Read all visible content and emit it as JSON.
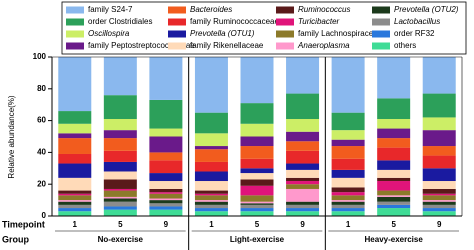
{
  "chart_data": {
    "type": "stacked_bar",
    "ylabel": "Relative abundance(%)",
    "row_labels": [
      "Timepoint",
      "Group"
    ],
    "categories": [
      "1",
      "5",
      "9",
      "1",
      "5",
      "9",
      "1",
      "5",
      "9"
    ],
    "groups": [
      "No-exercise",
      "Light-exercise",
      "Heavy-exercise"
    ],
    "ylim": [
      0,
      100
    ],
    "yticks": [
      0,
      20,
      40,
      60,
      80,
      100
    ],
    "series": [
      {
        "name": "others",
        "color": "#3fdc96",
        "values": [
          3,
          4,
          4,
          3,
          3,
          3,
          3,
          5,
          3
        ]
      },
      {
        "name": "order RF32",
        "color": "#2a78dc",
        "values": [
          2,
          2,
          2,
          2,
          2,
          2,
          2,
          2,
          2
        ]
      },
      {
        "name": "Lactobacillus",
        "color": "#8c8c8c",
        "italic": true,
        "values": [
          2,
          3,
          2,
          2,
          2,
          2,
          2,
          2,
          2
        ]
      },
      {
        "name": "Prevotella (OTU2)",
        "color": "#1c3a1c",
        "italic": true,
        "values": [
          2,
          2,
          2,
          2,
          1,
          2,
          2,
          3,
          2
        ]
      },
      {
        "name": "Anaeroplasma",
        "color": "#ff99cc",
        "italic": true,
        "values": [
          1,
          1,
          1,
          1,
          1,
          8,
          1,
          1,
          1
        ]
      },
      {
        "name": "family Lachnospiraceae",
        "color": "#8c7a2a",
        "values": [
          3,
          4,
          3,
          3,
          4,
          3,
          3,
          3,
          3
        ]
      },
      {
        "name": "Turicibacter",
        "color": "#e0147a",
        "italic": true,
        "values": [
          1,
          1,
          1,
          1,
          6,
          2,
          2,
          6,
          1
        ]
      },
      {
        "name": "Ruminococcus",
        "color": "#5a1a1a",
        "italic": true,
        "values": [
          2,
          6,
          2,
          2,
          4,
          2,
          3,
          2,
          3
        ]
      },
      {
        "name": "family Rikenellaceae",
        "color": "#ffdab8",
        "values": [
          8,
          5,
          5,
          6,
          4,
          5,
          6,
          5,
          5
        ]
      },
      {
        "name": "Prevotella (OTU1)",
        "color": "#1a1aa0",
        "italic": true,
        "values": [
          9,
          6,
          5,
          6,
          3,
          4,
          5,
          6,
          8
        ]
      },
      {
        "name": "family Ruminococcaceae",
        "color": "#e8282a",
        "values": [
          6,
          7,
          8,
          6,
          6,
          8,
          7,
          8,
          8
        ]
      },
      {
        "name": "Bacteroides",
        "color": "#f25c1e",
        "italic": true,
        "values": [
          10,
          8,
          5,
          8,
          8,
          6,
          8,
          6,
          6
        ]
      },
      {
        "name": "family Peptostreptococcaceae",
        "color": "#6a1a8a",
        "values": [
          3,
          5,
          10,
          2,
          6,
          6,
          4,
          6,
          10
        ]
      },
      {
        "name": "Oscillospira",
        "color": "#ccee66",
        "italic": true,
        "values": [
          6,
          7,
          5,
          8,
          8,
          8,
          6,
          6,
          8
        ]
      },
      {
        "name": "order Clostridiales",
        "color": "#2ca05a",
        "values": [
          8,
          15,
          18,
          13,
          13,
          16,
          11,
          13,
          15
        ]
      },
      {
        "name": "family S24-7",
        "color": "#8ab8ee",
        "values": [
          34,
          24,
          27,
          35,
          29,
          23,
          35,
          26,
          23
        ]
      }
    ]
  }
}
